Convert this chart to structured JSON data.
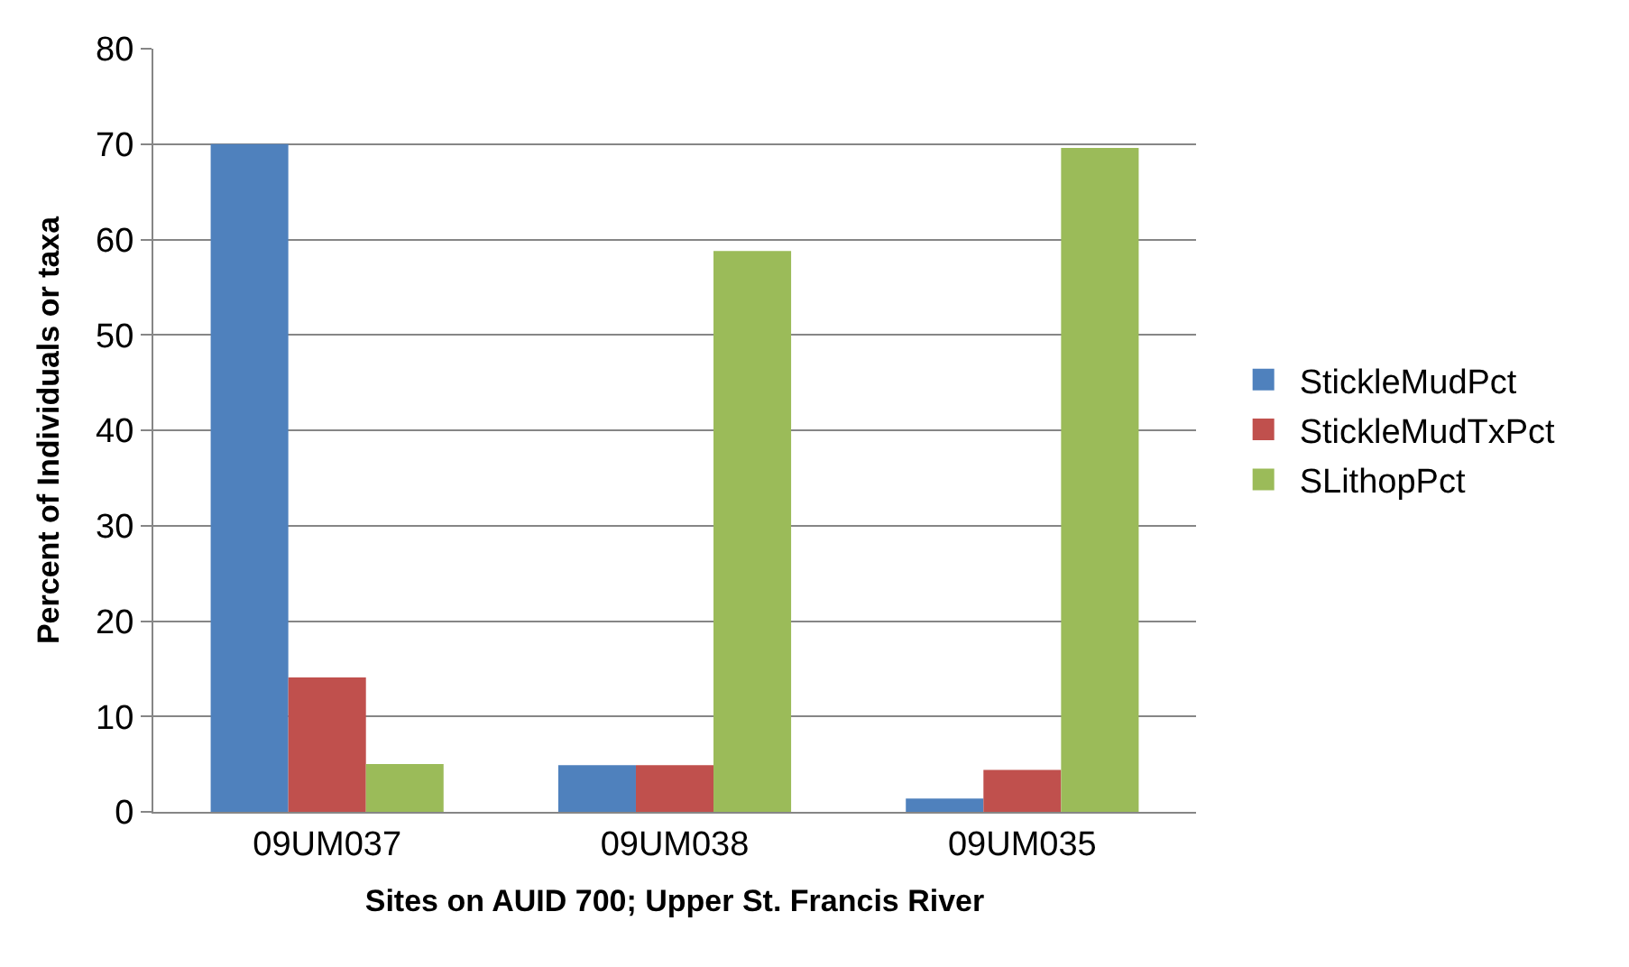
{
  "chart_data": {
    "type": "bar",
    "xlabel": "Sites on AUID 700; Upper St. Francis River",
    "ylabel": "Percent of Individuals or taxa",
    "categories": [
      "09UM037",
      "09UM038",
      "09UM035"
    ],
    "series": [
      {
        "name": "StickleMudPct",
        "color": "#4f81bd",
        "values": [
          70,
          4.9,
          1.4
        ]
      },
      {
        "name": "StickleMudTxPct",
        "color": "#c0504d",
        "values": [
          14.1,
          4.9,
          4.4
        ]
      },
      {
        "name": "SLithopPct",
        "color": "#9bbb59",
        "values": [
          5.0,
          58.8,
          69.6
        ]
      }
    ],
    "ylim": [
      0,
      80
    ],
    "yticks": [
      0,
      10,
      20,
      30,
      40,
      50,
      60,
      70,
      80
    ],
    "grid": "y",
    "legend": "right"
  }
}
